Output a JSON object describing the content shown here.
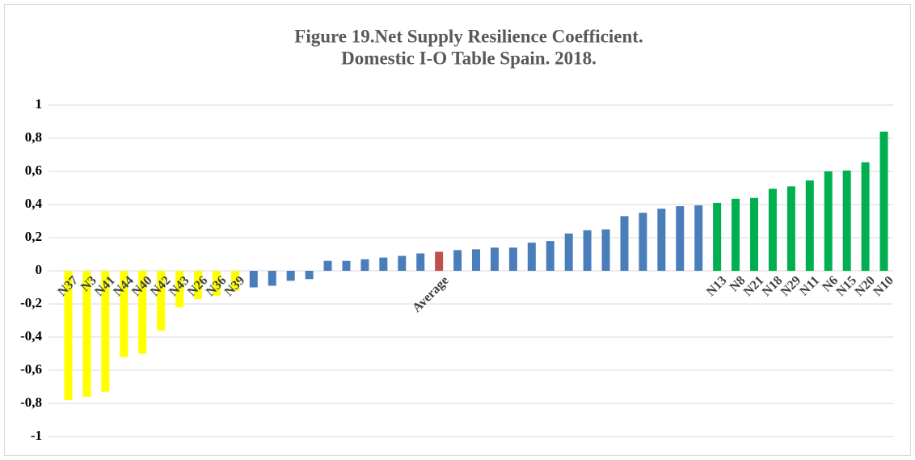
{
  "chart_data": {
    "type": "bar",
    "title": [
      "Figure 19.Net Supply Resilience Coefficient.",
      "Domestic I-O Table Spain. 2018."
    ],
    "categories": [
      "N37",
      "N3",
      "N41",
      "N44",
      "N40",
      "N42",
      "N43",
      "N26",
      "N36",
      "N39",
      null,
      null,
      null,
      null,
      null,
      null,
      null,
      null,
      null,
      null,
      "Average",
      null,
      null,
      null,
      null,
      null,
      null,
      null,
      null,
      null,
      null,
      null,
      null,
      null,
      null,
      "N13",
      "N8",
      "N21",
      "N18",
      "N29",
      "N11",
      "N6",
      "N15",
      "N20",
      "N10"
    ],
    "values": [
      -0.78,
      -0.76,
      -0.73,
      -0.52,
      -0.5,
      -0.36,
      -0.22,
      -0.17,
      -0.15,
      -0.12,
      -0.1,
      -0.09,
      -0.06,
      -0.05,
      0.06,
      0.06,
      0.07,
      0.08,
      0.09,
      0.105,
      0.115,
      0.125,
      0.13,
      0.14,
      0.14,
      0.17,
      0.18,
      0.225,
      0.245,
      0.25,
      0.33,
      0.35,
      0.375,
      0.39,
      0.395,
      0.41,
      0.435,
      0.44,
      0.495,
      0.51,
      0.545,
      0.6,
      0.605,
      0.655,
      0.84
    ],
    "colors": [
      "#ffff00",
      "#ffff00",
      "#ffff00",
      "#ffff00",
      "#ffff00",
      "#ffff00",
      "#ffff00",
      "#ffff00",
      "#ffff00",
      "#ffff00",
      "#4a7ebb",
      "#4a7ebb",
      "#4a7ebb",
      "#4a7ebb",
      "#4a7ebb",
      "#4a7ebb",
      "#4a7ebb",
      "#4a7ebb",
      "#4a7ebb",
      "#4a7ebb",
      "#c0504d",
      "#4a7ebb",
      "#4a7ebb",
      "#4a7ebb",
      "#4a7ebb",
      "#4a7ebb",
      "#4a7ebb",
      "#4a7ebb",
      "#4a7ebb",
      "#4a7ebb",
      "#4a7ebb",
      "#4a7ebb",
      "#4a7ebb",
      "#4a7ebb",
      "#4a7ebb",
      "#00b050",
      "#00b050",
      "#00b050",
      "#00b050",
      "#00b050",
      "#00b050",
      "#00b050",
      "#00b050",
      "#00b050",
      "#00b050"
    ],
    "ylim": [
      -1,
      1
    ],
    "yticks": [
      -1,
      {
        "value": -0.8,
        "label": "-0,8"
      },
      {
        "value": -0.6,
        "label": "-0,6"
      },
      {
        "value": -0.4,
        "label": "-0,4"
      },
      {
        "value": -0.2,
        "label": "-0,2"
      },
      0,
      {
        "value": 0.2,
        "label": "0,2"
      },
      {
        "value": 0.4,
        "label": "0,4"
      },
      {
        "value": 0.6,
        "label": "0,6"
      },
      {
        "value": 0.8,
        "label": "0,8"
      },
      1
    ],
    "grid": true
  }
}
